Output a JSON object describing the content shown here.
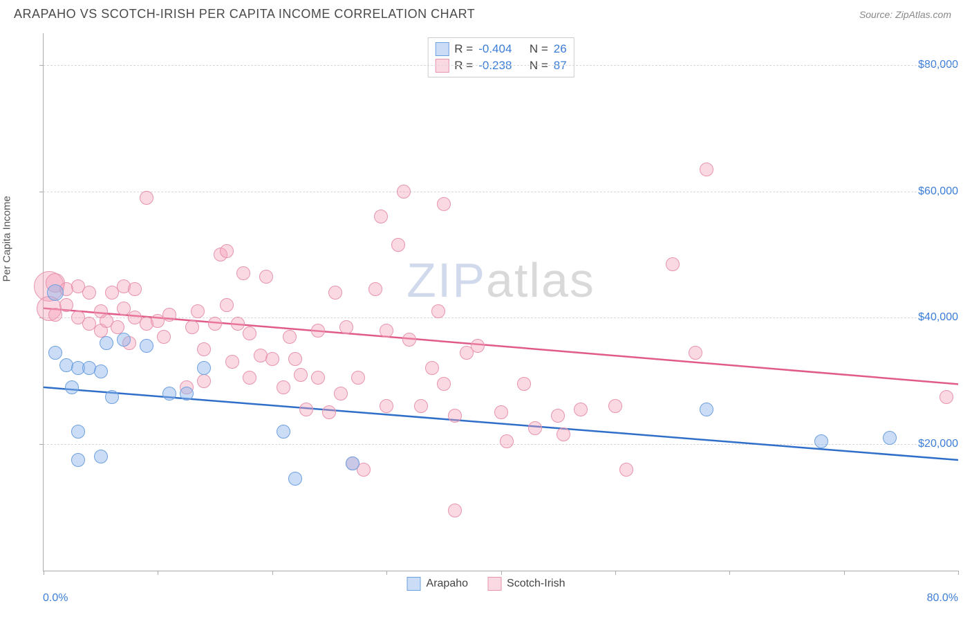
{
  "title": "ARAPAHO VS SCOTCH-IRISH PER CAPITA INCOME CORRELATION CHART",
  "source_label": "Source: ",
  "source_name": "ZipAtlas.com",
  "ylabel": "Per Capita Income",
  "watermark_a": "ZIP",
  "watermark_b": "atlas",
  "chart": {
    "type": "scatter",
    "xlim": [
      0,
      80
    ],
    "ylim": [
      0,
      85000
    ],
    "x_tick_positions": [
      0,
      10,
      20,
      30,
      40,
      50,
      60,
      70,
      80
    ],
    "x_label_min": "0.0%",
    "x_label_max": "80.0%",
    "y_gridlines": [
      20000,
      40000,
      60000,
      80000
    ],
    "y_labels": [
      "$20,000",
      "$40,000",
      "$60,000",
      "$80,000"
    ],
    "grid_color": "#d8d8d8",
    "axis_color": "#aaaaaa",
    "label_color": "#3b7dd8",
    "background_color": "#ffffff"
  },
  "series": [
    {
      "name": "Arapaho",
      "fill": "rgba(140,180,235,0.45)",
      "stroke": "#6da0e0",
      "trend_color": "#2f6fc9",
      "trend": {
        "y_at_xmin": 29000,
        "y_at_xmax": 17500
      },
      "R": "-0.404",
      "N": "26",
      "marker_r": 10,
      "points": [
        {
          "x": 1,
          "y": 44000,
          "r": 12
        },
        {
          "x": 1,
          "y": 34500
        },
        {
          "x": 2,
          "y": 32500
        },
        {
          "x": 2.5,
          "y": 29000
        },
        {
          "x": 3,
          "y": 32000
        },
        {
          "x": 3,
          "y": 22000
        },
        {
          "x": 3,
          "y": 17500
        },
        {
          "x": 4,
          "y": 32000
        },
        {
          "x": 5,
          "y": 18000
        },
        {
          "x": 5,
          "y": 31500
        },
        {
          "x": 5.5,
          "y": 36000
        },
        {
          "x": 6,
          "y": 27500
        },
        {
          "x": 7,
          "y": 36500
        },
        {
          "x": 9,
          "y": 35500
        },
        {
          "x": 11,
          "y": 28000
        },
        {
          "x": 12.5,
          "y": 28000
        },
        {
          "x": 14,
          "y": 32000
        },
        {
          "x": 21,
          "y": 22000
        },
        {
          "x": 22,
          "y": 14500
        },
        {
          "x": 27,
          "y": 17000
        },
        {
          "x": 58,
          "y": 25500
        },
        {
          "x": 68,
          "y": 20500
        },
        {
          "x": 74,
          "y": 21000
        }
      ]
    },
    {
      "name": "Scotch-Irish",
      "fill": "rgba(245,160,185,0.40)",
      "stroke": "#e793ac",
      "trend_color": "#e05a8a",
      "trend": {
        "y_at_xmin": 41500,
        "y_at_xmax": 29500
      },
      "R": "-0.238",
      "N": "87",
      "marker_r": 10,
      "points": [
        {
          "x": 0.5,
          "y": 45000,
          "r": 22
        },
        {
          "x": 0.5,
          "y": 41500,
          "r": 18
        },
        {
          "x": 1,
          "y": 45500,
          "r": 14
        },
        {
          "x": 1,
          "y": 40500
        },
        {
          "x": 2,
          "y": 44500
        },
        {
          "x": 2,
          "y": 42000
        },
        {
          "x": 3,
          "y": 40000
        },
        {
          "x": 3,
          "y": 45000
        },
        {
          "x": 4,
          "y": 39000
        },
        {
          "x": 4,
          "y": 44000
        },
        {
          "x": 5,
          "y": 41000
        },
        {
          "x": 5,
          "y": 38000
        },
        {
          "x": 5.5,
          "y": 39500
        },
        {
          "x": 6,
          "y": 44000
        },
        {
          "x": 6.5,
          "y": 38500
        },
        {
          "x": 7,
          "y": 41500
        },
        {
          "x": 7,
          "y": 45000
        },
        {
          "x": 7.5,
          "y": 36000
        },
        {
          "x": 8,
          "y": 40000
        },
        {
          "x": 8,
          "y": 44500
        },
        {
          "x": 9,
          "y": 59000
        },
        {
          "x": 9,
          "y": 39000
        },
        {
          "x": 10,
          "y": 39500
        },
        {
          "x": 10.5,
          "y": 37000
        },
        {
          "x": 11,
          "y": 40500
        },
        {
          "x": 12.5,
          "y": 29000
        },
        {
          "x": 13,
          "y": 38500
        },
        {
          "x": 13.5,
          "y": 41000
        },
        {
          "x": 14,
          "y": 30000
        },
        {
          "x": 14,
          "y": 35000
        },
        {
          "x": 15,
          "y": 39000
        },
        {
          "x": 15.5,
          "y": 50000
        },
        {
          "x": 16,
          "y": 50500
        },
        {
          "x": 16,
          "y": 42000
        },
        {
          "x": 16.5,
          "y": 33000
        },
        {
          "x": 17,
          "y": 39000
        },
        {
          "x": 17.5,
          "y": 47000
        },
        {
          "x": 18,
          "y": 37500
        },
        {
          "x": 18,
          "y": 30500
        },
        {
          "x": 19,
          "y": 34000
        },
        {
          "x": 19.5,
          "y": 46500
        },
        {
          "x": 20,
          "y": 33500
        },
        {
          "x": 21,
          "y": 29000
        },
        {
          "x": 21.5,
          "y": 37000
        },
        {
          "x": 22,
          "y": 33500
        },
        {
          "x": 22.5,
          "y": 31000
        },
        {
          "x": 23,
          "y": 25500
        },
        {
          "x": 24,
          "y": 38000
        },
        {
          "x": 24,
          "y": 30500
        },
        {
          "x": 25,
          "y": 25000
        },
        {
          "x": 25.5,
          "y": 44000
        },
        {
          "x": 26,
          "y": 28000
        },
        {
          "x": 26.5,
          "y": 38500
        },
        {
          "x": 27,
          "y": 17000
        },
        {
          "x": 27.5,
          "y": 30500
        },
        {
          "x": 28,
          "y": 16000
        },
        {
          "x": 29,
          "y": 44500
        },
        {
          "x": 29.5,
          "y": 56000
        },
        {
          "x": 30,
          "y": 38000
        },
        {
          "x": 30,
          "y": 26000
        },
        {
          "x": 31,
          "y": 51500
        },
        {
          "x": 31.5,
          "y": 60000
        },
        {
          "x": 32,
          "y": 36500
        },
        {
          "x": 33,
          "y": 26000
        },
        {
          "x": 34,
          "y": 32000
        },
        {
          "x": 34.5,
          "y": 41000
        },
        {
          "x": 35,
          "y": 29500
        },
        {
          "x": 35,
          "y": 58000
        },
        {
          "x": 36,
          "y": 9500
        },
        {
          "x": 36,
          "y": 24500
        },
        {
          "x": 37,
          "y": 34500
        },
        {
          "x": 38,
          "y": 35500
        },
        {
          "x": 40,
          "y": 25000
        },
        {
          "x": 40.5,
          "y": 20500
        },
        {
          "x": 42,
          "y": 29500
        },
        {
          "x": 43,
          "y": 22500
        },
        {
          "x": 45,
          "y": 24500
        },
        {
          "x": 45.5,
          "y": 21500
        },
        {
          "x": 47,
          "y": 25500
        },
        {
          "x": 50,
          "y": 26000
        },
        {
          "x": 51,
          "y": 16000
        },
        {
          "x": 55,
          "y": 48500
        },
        {
          "x": 57,
          "y": 34500
        },
        {
          "x": 58,
          "y": 63500
        },
        {
          "x": 79,
          "y": 27500
        }
      ]
    }
  ],
  "stats_legend": {
    "R_label": "R =",
    "N_label": "N ="
  },
  "bottom_legend_labels": [
    "Arapaho",
    "Scotch-Irish"
  ]
}
